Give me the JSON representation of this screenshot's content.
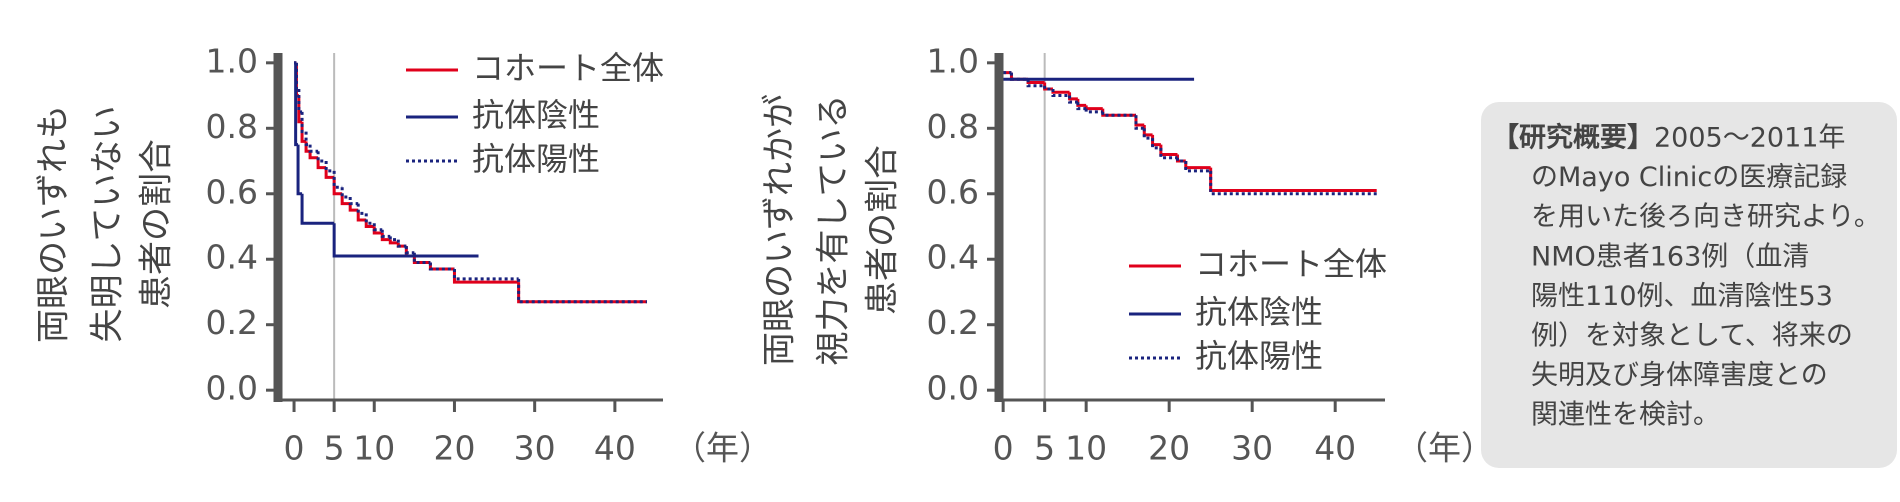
{
  "chart_data": [
    {
      "type": "step",
      "ylabel": [
        "両眼のいずれも",
        "失明していない",
        "患者の割合"
      ],
      "xlabel": "（年）",
      "xlim": [
        -2,
        46
      ],
      "xticks": [
        0,
        5,
        10,
        20,
        30,
        40
      ],
      "vline": 5,
      "ylim": [
        -0.03,
        1.03
      ],
      "yticks": [
        {
          "value": 0,
          "label": "0.0"
        },
        0.2,
        0.4,
        0.6,
        0.8,
        {
          "value": 1,
          "label": "1.0"
        }
      ],
      "series": [
        {
          "name": "コホート全体",
          "color": "#e0001b",
          "line_style": "solid",
          "x": [
            0,
            0.3,
            0.6,
            1,
            1.5,
            2,
            3,
            4,
            5,
            6,
            7,
            8,
            9,
            10,
            11,
            12,
            13,
            14,
            15,
            17,
            20,
            28,
            44
          ],
          "values": [
            1.0,
            0.9,
            0.82,
            0.76,
            0.73,
            0.71,
            0.68,
            0.65,
            0.6,
            0.57,
            0.55,
            0.52,
            0.5,
            0.48,
            0.46,
            0.45,
            0.44,
            0.41,
            0.39,
            0.37,
            0.33,
            0.27,
            0.27
          ]
        },
        {
          "name": "抗体陰性",
          "color": "#1a237e",
          "line_style": "solid",
          "x": [
            0,
            0.2,
            0.5,
            1,
            5,
            23
          ],
          "values": [
            1.0,
            0.75,
            0.6,
            0.51,
            0.41,
            0.41
          ]
        },
        {
          "name": "抗体陽性",
          "color": "#1a237e",
          "line_style": "dotted",
          "x": [
            0,
            0.3,
            0.6,
            1,
            1.5,
            2,
            3,
            4,
            5,
            6,
            7,
            8,
            9,
            10,
            11,
            12,
            13,
            14,
            15,
            17,
            20,
            28,
            44
          ],
          "values": [
            1.0,
            0.92,
            0.85,
            0.79,
            0.75,
            0.73,
            0.7,
            0.67,
            0.62,
            0.59,
            0.57,
            0.54,
            0.51,
            0.49,
            0.47,
            0.46,
            0.44,
            0.42,
            0.39,
            0.37,
            0.34,
            0.27,
            0.27
          ]
        }
      ]
    },
    {
      "type": "step",
      "ylabel": [
        "両眼のいずれかが",
        "視力を有している",
        "患者の割合"
      ],
      "xlabel": "（年）",
      "xlim": [
        -0.5,
        46
      ],
      "xticks": [
        0,
        5,
        10,
        20,
        30,
        40
      ],
      "vline": 5,
      "ylim": [
        -0.03,
        1.03
      ],
      "yticks": [
        {
          "value": 0,
          "label": "0.0"
        },
        0.2,
        0.4,
        0.6,
        0.8,
        {
          "value": 1,
          "label": "1.0"
        }
      ],
      "series": [
        {
          "name": "コホート全体",
          "color": "#e0001b",
          "line_style": "solid",
          "x": [
            0,
            1,
            3,
            5,
            6,
            8,
            9,
            10,
            12,
            16,
            17,
            18,
            19,
            21,
            22,
            25,
            45
          ],
          "values": [
            0.97,
            0.95,
            0.94,
            0.92,
            0.91,
            0.89,
            0.87,
            0.86,
            0.84,
            0.81,
            0.78,
            0.75,
            0.72,
            0.7,
            0.68,
            0.61,
            0.61
          ]
        },
        {
          "name": "抗体陰性",
          "color": "#1a237e",
          "line_style": "solid",
          "x": [
            0,
            23
          ],
          "values": [
            0.95,
            0.95
          ]
        },
        {
          "name": "抗体陽性",
          "color": "#1a237e",
          "line_style": "dotted",
          "x": [
            0,
            1,
            3,
            5,
            6,
            8,
            9,
            10,
            12,
            16,
            17,
            18,
            19,
            21,
            22,
            25,
            45
          ],
          "values": [
            0.97,
            0.95,
            0.93,
            0.92,
            0.9,
            0.88,
            0.86,
            0.85,
            0.84,
            0.8,
            0.77,
            0.74,
            0.71,
            0.7,
            0.67,
            0.6,
            0.6
          ]
        }
      ]
    }
  ],
  "note": {
    "heading": "【研究概要】",
    "lines": [
      "2005〜2011年",
      "のMayo Clinicの医療記録",
      "を用いた後ろ向き研究より。",
      "NMO患者163例（血清",
      "陽性110例、血清陰性53",
      "例）を対象として、将来の",
      "失明及び身体障害度との",
      "関連性を検討。"
    ]
  }
}
